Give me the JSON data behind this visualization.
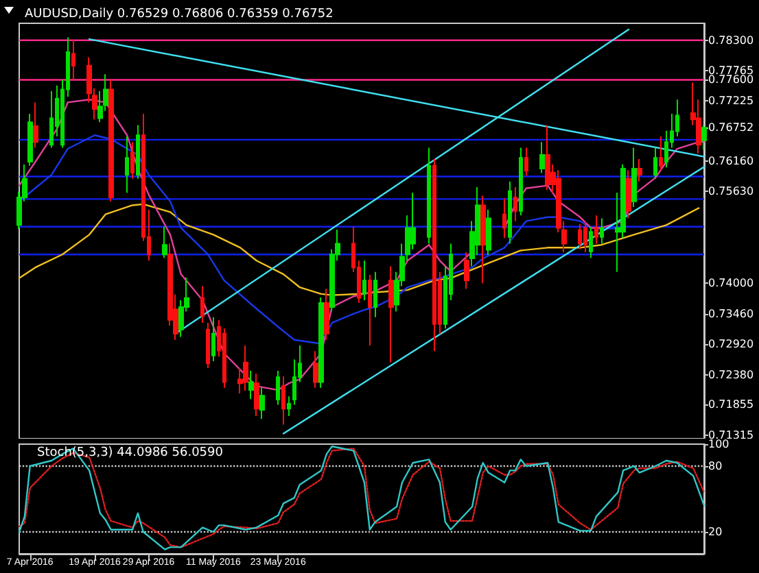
{
  "chart_data": [
    {
      "type": "candlestick",
      "title": "AUDUSD,Daily 0.76529 0.76806 0.76359 0.76752",
      "tick_labels": "y",
      "xlim": [
        "2016-04-05",
        "2016-08-10"
      ],
      "ylim": [
        0.7125,
        0.786
      ],
      "yticks": [
        {
          "value": 0.783,
          "label": "0.78300"
        },
        {
          "value": 0.77765,
          "label": "0.77765"
        },
        {
          "value": 0.776,
          "label": "0.77600"
        },
        {
          "value": 0.77225,
          "label": "0.77225"
        },
        {
          "value": 0.76752,
          "label": "0.76752"
        },
        {
          "value": 0.7616,
          "label": "0.76160"
        },
        {
          "value": 0.7563,
          "label": "0.75630"
        },
        {
          "value": 0.74,
          "label": "0.74000"
        },
        {
          "value": 0.7346,
          "label": "0.73460"
        },
        {
          "value": 0.7292,
          "label": "0.72920"
        },
        {
          "value": 0.7238,
          "label": "0.72380"
        },
        {
          "value": 0.71855,
          "label": "0.71855"
        },
        {
          "value": 0.71315,
          "label": "0.71315"
        }
      ],
      "ref_lines": [
        {
          "axis": "y",
          "value": 0.783,
          "color": "#ff2a8a"
        },
        {
          "axis": "y",
          "value": 0.776,
          "color": "#ff2a8a"
        },
        {
          "axis": "y",
          "value": 0.7654,
          "color": "#1020f0"
        },
        {
          "axis": "y",
          "value": 0.7589,
          "color": "#1020f0"
        },
        {
          "axis": "y",
          "value": 0.7549,
          "color": "#1020f0"
        },
        {
          "axis": "y",
          "value": 0.75,
          "color": "#1020f0"
        },
        {
          "axis": "y",
          "value": 0.7451,
          "color": "#1020f0"
        }
      ],
      "series": [
        {
          "type": "line",
          "color": "#f0c020",
          "x": [
            "2016-04-05",
            "2016-04-08",
            "2016-04-13",
            "2016-04-18",
            "2016-04-21",
            "2016-04-26",
            "2016-04-28",
            "2016-05-03",
            "2016-05-06",
            "2016-05-11",
            "2016-05-16",
            "2016-05-19",
            "2016-05-24",
            "2016-05-27",
            "2016-05-31",
            "2016-06-02",
            "2016-06-07",
            "2016-06-10",
            "2016-06-16",
            "2016-06-21",
            "2016-06-24",
            "2016-06-29",
            "2016-07-04",
            "2016-07-07",
            "2016-07-12",
            "2016-07-18",
            "2016-07-22",
            "2016-07-28",
            "2016-08-03",
            "2016-08-09"
          ],
          "values": [
            0.7409,
            0.7428,
            0.7451,
            0.7486,
            0.7522,
            0.7538,
            0.754,
            0.7526,
            0.7503,
            0.7486,
            0.7463,
            0.744,
            0.7416,
            0.7393,
            0.7381,
            0.7379,
            0.7381,
            0.7384,
            0.7388,
            0.7405,
            0.7409,
            0.7428,
            0.7447,
            0.7458,
            0.7463,
            0.7463,
            0.7468,
            0.7486,
            0.7503,
            0.7533
          ]
        },
        {
          "type": "line",
          "color": "#1838e8",
          "x": [
            "2016-04-05",
            "2016-04-11",
            "2016-04-14",
            "2016-04-19",
            "2016-04-22",
            "2016-04-27",
            "2016-04-29",
            "2016-05-03",
            "2016-05-05",
            "2016-05-10",
            "2016-05-13",
            "2016-05-18",
            "2016-05-23",
            "2016-05-26",
            "2016-05-31",
            "2016-06-02",
            "2016-06-06",
            "2016-06-08",
            "2016-06-10",
            "2016-06-14",
            "2016-06-16",
            "2016-06-20",
            "2016-06-22",
            "2016-06-24",
            "2016-06-28",
            "2016-06-30",
            "2016-07-04",
            "2016-07-06",
            "2016-07-08",
            "2016-07-12",
            "2016-07-14",
            "2016-07-18",
            "2016-07-20",
            "2016-07-22",
            "2016-07-26"
          ],
          "values": [
            0.7545,
            0.7592,
            0.7638,
            0.7662,
            0.7655,
            0.7627,
            0.7592,
            0.7545,
            0.7498,
            0.7451,
            0.7405,
            0.7363,
            0.7323,
            0.73,
            0.7293,
            0.733,
            0.7346,
            0.7353,
            0.7358,
            0.7377,
            0.7393,
            0.7405,
            0.7409,
            0.7416,
            0.7428,
            0.7444,
            0.7463,
            0.7486,
            0.751,
            0.7517,
            0.7517,
            0.751,
            0.7498,
            0.7496,
            0.7498
          ]
        },
        {
          "type": "line",
          "color": "#e0409a",
          "x": [
            "2016-04-05",
            "2016-04-08",
            "2016-04-12",
            "2016-04-14",
            "2016-04-18",
            "2016-04-21",
            "2016-04-25",
            "2016-04-27",
            "2016-04-29",
            "2016-05-03",
            "2016-05-05",
            "2016-05-09",
            "2016-05-11",
            "2016-05-13",
            "2016-05-17",
            "2016-05-19",
            "2016-05-23",
            "2016-05-25",
            "2016-05-27",
            "2016-05-31",
            "2016-06-02",
            "2016-06-06",
            "2016-06-08",
            "2016-06-10",
            "2016-06-14",
            "2016-06-16",
            "2016-06-20",
            "2016-06-22",
            "2016-06-24",
            "2016-06-28",
            "2016-06-30",
            "2016-07-04",
            "2016-07-06",
            "2016-07-08",
            "2016-07-12",
            "2016-07-14",
            "2016-07-18",
            "2016-07-20",
            "2016-07-22",
            "2016-07-26",
            "2016-07-28",
            "2016-08-01",
            "2016-08-03",
            "2016-08-05",
            "2016-08-09",
            "2016-08-10"
          ],
          "values": [
            0.7573,
            0.7615,
            0.7673,
            0.772,
            0.7725,
            0.772,
            0.7662,
            0.7603,
            0.7557,
            0.7486,
            0.7416,
            0.737,
            0.7323,
            0.7276,
            0.7237,
            0.7218,
            0.7211,
            0.7223,
            0.723,
            0.7276,
            0.7358,
            0.7377,
            0.7381,
            0.7386,
            0.7405,
            0.744,
            0.7468,
            0.744,
            0.7421,
            0.7456,
            null,
            0.7498,
            0.754,
            0.7568,
            0.7573,
            0.7545,
            0.7517,
            0.7498,
            0.7498,
            0.751,
            0.7557,
            0.7587,
            0.7615,
            0.7638,
            0.765,
            0.765
          ]
        },
        {
          "type": "line",
          "color": "#40e0f0",
          "x": [
            "2016-04-18",
            "2016-08-10"
          ],
          "values": [
            0.7832,
            0.7624
          ]
        },
        {
          "type": "line",
          "color": "#40e0f0",
          "x": [
            "2016-05-04",
            "2016-07-27"
          ],
          "values": [
            0.7311,
            0.7849
          ]
        },
        {
          "type": "line",
          "color": "#40e0f0",
          "x": [
            "2016-05-24",
            "2016-08-10"
          ],
          "values": [
            0.7134,
            0.7606
          ]
        },
        {
          "x": [
            "2016-04-05",
            "2016-04-06",
            "2016-04-07",
            "2016-04-08",
            "2016-04-11",
            "2016-04-12",
            "2016-04-13",
            "2016-04-14",
            "2016-04-15",
            "2016-04-18",
            "2016-04-19",
            "2016-04-20",
            "2016-04-21",
            "2016-04-22",
            "2016-04-25",
            "2016-04-26",
            "2016-04-27",
            "2016-04-28",
            "2016-04-29",
            "2016-05-02",
            "2016-05-03",
            "2016-05-04",
            "2016-05-05",
            "2016-05-06",
            "2016-05-09",
            "2016-05-10",
            "2016-05-11",
            "2016-05-12",
            "2016-05-13",
            "2016-05-16",
            "2016-05-17",
            "2016-05-18",
            "2016-05-19",
            "2016-05-20",
            "2016-05-23",
            "2016-05-24",
            "2016-05-25",
            "2016-05-26",
            "2016-05-27",
            "2016-05-30",
            "2016-05-31",
            "2016-06-01",
            "2016-06-02",
            "2016-06-03",
            "2016-06-06",
            "2016-06-07",
            "2016-06-08",
            "2016-06-09",
            "2016-06-10",
            "2016-06-13",
            "2016-06-14",
            "2016-06-15",
            "2016-06-16",
            "2016-06-17",
            "2016-06-20",
            "2016-06-21",
            "2016-06-22",
            "2016-06-23",
            "2016-06-24",
            "2016-06-27",
            "2016-06-28",
            "2016-06-29",
            "2016-06-30",
            "2016-07-01",
            "2016-07-04",
            "2016-07-05",
            "2016-07-06",
            "2016-07-07",
            "2016-07-08",
            "2016-07-11",
            "2016-07-12",
            "2016-07-13",
            "2016-07-14",
            "2016-07-15",
            "2016-07-18",
            "2016-07-19",
            "2016-07-20",
            "2016-07-21",
            "2016-07-22",
            "2016-07-25",
            "2016-07-26",
            "2016-07-27",
            "2016-07-28",
            "2016-07-29",
            "2016-08-01",
            "2016-08-02",
            "2016-08-03",
            "2016-08-04",
            "2016-08-05",
            "2016-08-08",
            "2016-08-09",
            "2016-08-10"
          ],
          "ohlc": [
            [
              0.7503,
              0.7562,
              0.7496,
              0.7552
            ],
            [
              0.7552,
              0.761,
              0.7545,
              0.7585
            ],
            [
              0.7615,
              0.77,
              0.7608,
              0.7685
            ],
            [
              0.7678,
              0.772,
              0.764,
              0.765
            ],
            [
              0.7645,
              0.774,
              0.764,
              0.7692
            ],
            [
              0.7678,
              0.775,
              0.766,
              0.7727
            ],
            [
              0.7645,
              0.776,
              0.764,
              0.7743
            ],
            [
              0.7743,
              0.7835,
              0.773,
              0.7809
            ],
            [
              0.7806,
              0.783,
              0.776,
              0.7785
            ],
            [
              0.7785,
              0.78,
              0.772,
              0.7736
            ],
            [
              0.7732,
              0.7745,
              0.769,
              0.7708
            ],
            [
              0.7692,
              0.774,
              0.7685,
              0.7713
            ],
            [
              0.7715,
              0.777,
              0.7705,
              0.7743
            ],
            [
              0.7743,
              0.776,
              0.7545,
              0.7552
            ],
            [
              0.7592,
              0.766,
              0.756,
              0.7622
            ],
            [
              0.7631,
              0.765,
              0.7585,
              0.7596
            ],
            [
              0.7592,
              0.768,
              0.7585,
              0.7662
            ],
            [
              0.7662,
              0.77,
              0.7475,
              0.7482
            ],
            [
              0.7482,
              0.753,
              0.744,
              0.7451
            ],
            [
              0.7451,
              0.75,
              0.7445,
              0.7468
            ],
            [
              0.7451,
              0.747,
              0.7325,
              0.7335
            ],
            [
              0.7354,
              0.738,
              0.73,
              0.7311
            ],
            [
              0.7318,
              0.737,
              0.7305,
              0.7358
            ],
            [
              0.7358,
              0.741,
              0.735,
              0.7374
            ],
            [
              0.7374,
              0.7395,
              0.733,
              0.7342
            ],
            [
              0.7318,
              0.733,
              0.725,
              0.7258
            ],
            [
              0.7272,
              0.734,
              0.7262,
              0.7311
            ],
            [
              0.7323,
              0.7335,
              0.727,
              0.7281
            ],
            [
              0.7311,
              0.732,
              0.7215,
              0.7225
            ],
            [
              0.723,
              0.725,
              0.7205,
              0.7223
            ],
            [
              0.726,
              0.729,
              0.721,
              0.7225
            ],
            [
              0.7211,
              0.7245,
              0.7195,
              0.7225
            ],
            [
              0.7223,
              0.724,
              0.7165,
              0.7178
            ],
            [
              0.7176,
              0.7215,
              0.716,
              0.7201
            ],
            [
              0.7194,
              0.7245,
              0.7185,
              0.7234
            ],
            [
              0.7218,
              0.7235,
              0.715,
              0.7178
            ],
            [
              0.7178,
              0.72,
              0.7165,
              0.7187
            ],
            [
              0.7194,
              0.7265,
              0.7185,
              0.7234
            ],
            [
              0.7234,
              0.729,
              0.7225,
              0.7258
            ],
            [
              0.7258,
              0.728,
              0.7215,
              0.7225
            ],
            [
              0.7225,
              0.7375,
              0.7215,
              0.7365
            ],
            [
              0.7365,
              0.739,
              0.73,
              0.7311
            ],
            [
              0.7358,
              0.746,
              0.735,
              0.7451
            ],
            [
              0.7451,
              0.7495,
              0.744,
              0.747
            ],
            [
              0.747,
              0.75,
              0.742,
              0.7428
            ],
            [
              0.7428,
              0.744,
              0.7365,
              0.7374
            ],
            [
              0.7381,
              0.744,
              0.737,
              0.7405
            ],
            [
              0.7405,
              0.7415,
              0.729,
              0.7358
            ],
            [
              0.7358,
              0.742,
              0.734,
              0.7405
            ],
            [
              0.7405,
              0.743,
              0.726,
              0.7358
            ],
            [
              0.7362,
              0.742,
              0.735,
              0.7405
            ],
            [
              0.7405,
              0.747,
              0.7395,
              0.7447
            ],
            [
              0.7451,
              0.752,
              0.744,
              0.7498
            ],
            [
              0.747,
              0.756,
              0.746,
              0.7498
            ],
            [
              0.7482,
              0.764,
              0.747,
              0.7608
            ],
            [
              0.7608,
              0.762,
              0.728,
              0.7328
            ],
            [
              0.7405,
              0.742,
              0.731,
              0.7328
            ],
            [
              0.7328,
              0.743,
              0.732,
              0.7412
            ],
            [
              0.7381,
              0.747,
              0.737,
              0.7451
            ],
            [
              0.744,
              0.7455,
              0.739,
              0.7405
            ],
            [
              0.7444,
              0.751,
              0.743,
              0.7491
            ],
            [
              0.7468,
              0.757,
              0.745,
              0.7538
            ],
            [
              0.7538,
              0.7555,
              0.74,
              0.7468
            ],
            [
              0.7459,
              0.753,
              0.745,
              0.7515
            ],
            [
              0.7522,
              0.755,
              0.748,
              0.7498
            ],
            [
              0.7482,
              0.758,
              0.747,
              0.7563
            ],
            [
              0.7552,
              0.757,
              0.751,
              0.7528
            ],
            [
              0.7528,
              0.764,
              0.752,
              0.7622
            ],
            [
              0.7622,
              0.764,
              0.759,
              0.7599
            ],
            [
              0.7603,
              0.765,
              0.7595,
              0.7627
            ],
            [
              0.7627,
              0.768,
              0.7565,
              0.7575
            ],
            [
              0.7596,
              0.761,
              0.756,
              0.7575
            ],
            [
              0.7585,
              0.76,
              0.749,
              0.7498
            ],
            [
              0.7494,
              0.751,
              0.7455,
              0.747
            ],
            [
              0.7494,
              0.7505,
              0.746,
              0.747
            ],
            [
              0.7498,
              0.751,
              0.7455,
              0.7468
            ],
            [
              0.7456,
              0.75,
              0.7445,
              0.7491
            ],
            [
              0.7498,
              0.752,
              0.747,
              0.7482
            ],
            [
              0.7482,
              0.7515,
              0.747,
              0.7498
            ],
            [
              0.7491,
              0.756,
              0.742,
              0.7498
            ],
            [
              0.7491,
              0.761,
              0.748,
              0.7603
            ],
            [
              0.7585,
              0.76,
              0.7515,
              0.7528
            ],
            [
              0.7545,
              0.764,
              0.7535,
              0.7603
            ],
            [
              0.7603,
              0.762,
              0.758,
              0.7592
            ],
            [
              0.7592,
              0.764,
              0.7585,
              0.7622
            ],
            [
              0.7622,
              0.766,
              0.76,
              0.7608
            ],
            [
              0.7615,
              0.767,
              0.7605,
              0.765
            ],
            [
              0.765,
              0.77,
              0.764,
              0.7669
            ],
            [
              0.7669,
              0.7725,
              0.766,
              0.7697
            ],
            [
              0.7701,
              0.7755,
              0.768,
              0.769
            ],
            [
              0.7692,
              0.7725,
              0.763,
              0.7645
            ],
            [
              0.76529,
              0.76806,
              0.76359,
              0.76752
            ]
          ],
          "colors": [
            "#00e000",
            "#00e000",
            "#00e000",
            "#ff1010",
            "#00e000",
            "#00e000",
            "#00e000",
            "#00e000",
            "#ff1010",
            "#ff1010",
            "#ff1010",
            "#00e000",
            "#00e000",
            "#ff1010",
            "#00e000",
            "#ff1010",
            "#00e000",
            "#ff1010",
            "#ff1010",
            "#00e000",
            "#ff1010",
            "#ff1010",
            "#00e000",
            "#00e000",
            "#ff1010",
            "#ff1010",
            "#00e000",
            "#ff1010",
            "#ff1010",
            "#ff1010",
            "#ff1010",
            "#00e000",
            "#ff1010",
            "#00e000",
            "#00e000",
            "#ff1010",
            "#00e000",
            "#00e000",
            "#00e000",
            "#ff1010",
            "#00e000",
            "#ff1010",
            "#00e000",
            "#00e000",
            "#ff1010",
            "#ff1010",
            "#00e000",
            "#ff1010",
            "#00e000",
            "#ff1010",
            "#00e000",
            "#00e000",
            "#00e000",
            "#00e000",
            "#00e000",
            "#ff1010",
            "#ff1010",
            "#00e000",
            "#00e000",
            "#ff1010",
            "#00e000",
            "#00e000",
            "#ff1010",
            "#00e000",
            "#ff1010",
            "#00e000",
            "#ff1010",
            "#00e000",
            "#ff1010",
            "#00e000",
            "#ff1010",
            "#ff1010",
            "#ff1010",
            "#ff1010",
            "#ff1010",
            "#ff1010",
            "#00e000",
            "#ff1010",
            "#00e000",
            "#00e000",
            "#00e000",
            "#ff1010",
            "#00e000",
            "#ff1010",
            "#00e000",
            "#ff1010",
            "#00e000",
            "#00e000",
            "#00e000",
            "#ff1010",
            "#ff1010",
            "#00e000"
          ]
        }
      ]
    },
    {
      "type": "line",
      "title": "Stoch(5,3,3) 44.0986 56.0590",
      "xlim": [
        "2016-04-05",
        "2016-08-10"
      ],
      "xticks": [
        {
          "value": "2016-04-07",
          "label": "7 Apr 2016"
        },
        {
          "value": "2016-04-19",
          "label": "19 Apr 2016"
        },
        {
          "value": "2016-04-29",
          "label": "29 Apr 2016"
        },
        {
          "value": "2016-05-11",
          "label": "11 May 2016"
        },
        {
          "value": "2016-05-23",
          "label": "23 May 2016"
        }
      ],
      "ylim": [
        0,
        100
      ],
      "yticks": [
        20,
        80,
        100
      ],
      "ref_lines": [
        {
          "axis": "y",
          "value": 20,
          "color": "#c8c8c8",
          "line_style": "dotted"
        },
        {
          "axis": "y",
          "value": 80,
          "color": "#c8c8c8",
          "line_style": "dotted"
        }
      ],
      "series": [
        {
          "color": "#e02020",
          "line_style": "dotted",
          "x": [
            "2016-04-05",
            "2016-04-06",
            "2016-04-07",
            "2016-04-11",
            "2016-04-13",
            "2016-04-15",
            "2016-04-18",
            "2016-04-20",
            "2016-04-21",
            "2016-04-22",
            "2016-04-26",
            "2016-04-27",
            "2016-04-28",
            "2016-05-02",
            "2016-05-03",
            "2016-05-05",
            "2016-05-09",
            "2016-05-11",
            "2016-05-12",
            "2016-05-13",
            "2016-05-17",
            "2016-05-19",
            "2016-05-23",
            "2016-05-24",
            "2016-05-26",
            "2016-05-27",
            "2016-05-31",
            "2016-06-01",
            "2016-06-02",
            "2016-06-06",
            "2016-06-08",
            "2016-06-09",
            "2016-06-10",
            "2016-06-14",
            "2016-06-15",
            "2016-06-17",
            "2016-06-20",
            "2016-06-22",
            "2016-06-23",
            "2016-06-24",
            "2016-06-28",
            "2016-06-29",
            "2016-06-30",
            "2016-07-01",
            "2016-07-04",
            "2016-07-05",
            "2016-07-06",
            "2016-07-07",
            "2016-07-08",
            "2016-07-12",
            "2016-07-13",
            "2016-07-14",
            "2016-07-18",
            "2016-07-20",
            "2016-07-21",
            "2016-07-25",
            "2016-07-26",
            "2016-07-28",
            "2016-07-29",
            "2016-08-01",
            "2016-08-03",
            "2016-08-05",
            "2016-08-08",
            "2016-08-10"
          ],
          "values": [
            25,
            28,
            60,
            80,
            87,
            92,
            88,
            60,
            40,
            30,
            24,
            30,
            28,
            15,
            8,
            6,
            14,
            18,
            22,
            25,
            24,
            23,
            28,
            38,
            45,
            55,
            68,
            83,
            94,
            96,
            80,
            40,
            28,
            32,
            50,
            72,
            84,
            78,
            50,
            30,
            30,
            52,
            74,
            80,
            72,
            72,
            75,
            80,
            82,
            82,
            72,
            45,
            28,
            22,
            26,
            42,
            64,
            76,
            78,
            78,
            82,
            84,
            78,
            56
          ]
        },
        {
          "color": "#30c8c8",
          "x": [
            "2016-04-05",
            "2016-04-06",
            "2016-04-07",
            "2016-04-11",
            "2016-04-13",
            "2016-04-15",
            "2016-04-18",
            "2016-04-20",
            "2016-04-21",
            "2016-04-22",
            "2016-04-26",
            "2016-04-27",
            "2016-04-28",
            "2016-05-02",
            "2016-05-03",
            "2016-05-05",
            "2016-05-09",
            "2016-05-11",
            "2016-05-12",
            "2016-05-13",
            "2016-05-17",
            "2016-05-19",
            "2016-05-23",
            "2016-05-24",
            "2016-05-26",
            "2016-05-27",
            "2016-05-31",
            "2016-06-01",
            "2016-06-02",
            "2016-06-06",
            "2016-06-08",
            "2016-06-09",
            "2016-06-10",
            "2016-06-14",
            "2016-06-15",
            "2016-06-17",
            "2016-06-20",
            "2016-06-22",
            "2016-06-23",
            "2016-06-24",
            "2016-06-28",
            "2016-06-29",
            "2016-06-30",
            "2016-07-01",
            "2016-07-04",
            "2016-07-05",
            "2016-07-06",
            "2016-07-07",
            "2016-07-08",
            "2016-07-12",
            "2016-07-13",
            "2016-07-14",
            "2016-07-18",
            "2016-07-20",
            "2016-07-21",
            "2016-07-25",
            "2016-07-26",
            "2016-07-28",
            "2016-07-29",
            "2016-08-01",
            "2016-08-03",
            "2016-08-05",
            "2016-08-08",
            "2016-08-10"
          ],
          "values": [
            20,
            34,
            80,
            85,
            91,
            96,
            76,
            37,
            31,
            22,
            22,
            37,
            20,
            4,
            6,
            6,
            24,
            20,
            26,
            26,
            22,
            24,
            35,
            46,
            51,
            63,
            76,
            91,
            98,
            94,
            65,
            22,
            29,
            43,
            65,
            83,
            86,
            65,
            29,
            22,
            43,
            69,
            83,
            74,
            65,
            76,
            76,
            86,
            80,
            83,
            60,
            29,
            21,
            21,
            34,
            56,
            76,
            80,
            74,
            80,
            85,
            83,
            71,
            44
          ]
        }
      ]
    }
  ]
}
